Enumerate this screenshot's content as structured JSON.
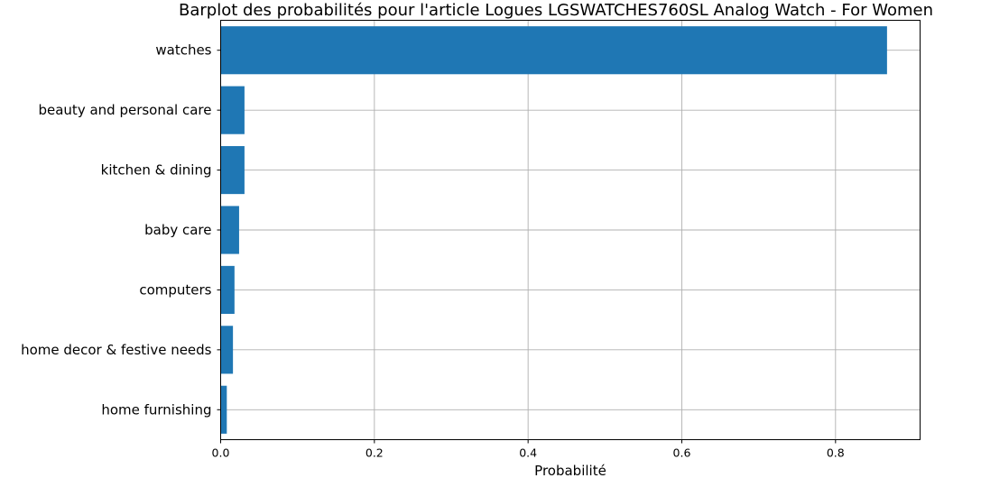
{
  "chart_data": {
    "type": "bar",
    "orientation": "horizontal",
    "title": "Barplot des probabilités pour l'article Logues LGSWATCHES760SL Analog Watch  - For Women",
    "xlabel": "Probabilité",
    "ylabel": "",
    "categories": [
      "watches",
      "beauty and personal care",
      "kitchen & dining",
      "baby care",
      "computers",
      "home decor & festive needs",
      "home furnishing"
    ],
    "values": [
      0.867,
      0.031,
      0.031,
      0.024,
      0.018,
      0.016,
      0.008
    ],
    "xlim": [
      0,
      0.91
    ],
    "xticks": [
      0.0,
      0.2,
      0.4,
      0.6,
      0.8
    ],
    "xtick_labels": [
      "0.0",
      "0.2",
      "0.4",
      "0.6",
      "0.8"
    ],
    "grid": true,
    "bar_color": "#1f77b4",
    "grid_color": "#b0b0b0"
  }
}
